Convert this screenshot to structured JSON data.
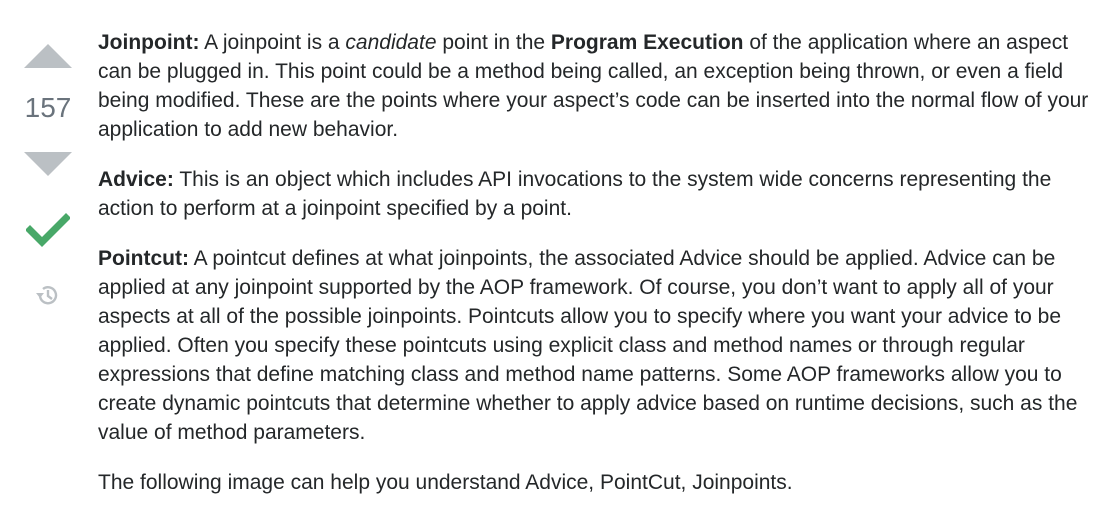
{
  "votes": {
    "count": "157",
    "accepted": true,
    "icons": {
      "up": "triangle-up-icon",
      "down": "triangle-down-icon",
      "accepted": "checkmark-icon",
      "history": "history-icon"
    },
    "colors": {
      "arrow": "#bbc0c4",
      "count": "#6a737c",
      "accepted": "#48a868",
      "history": "#bbc0c4"
    }
  },
  "answer": {
    "joinpoint": {
      "term": "Joinpoint:",
      "before": " A joinpoint is a ",
      "emphasis": "candidate",
      "middle": " point in the ",
      "strong": "Program Execution",
      "after": " of the application where an aspect can be plugged in. This point could be a method being called, an exception being thrown, or even a field being modified. These are the points where your aspect’s code can be inserted into the normal flow of your application to add new behavior."
    },
    "advice": {
      "term": "Advice:",
      "text": " This is an object which includes API invocations to the system wide concerns representing the action to perform at a joinpoint specified by a point."
    },
    "pointcut": {
      "term": "Pointcut:",
      "text": " A pointcut defines at what joinpoints, the associated Advice should be applied. Advice can be applied at any joinpoint supported by the AOP framework. Of course, you don’t want to apply all of your aspects at all of the possible joinpoints. Pointcuts allow you to specify where you want your advice to be applied. Often you specify these pointcuts using explicit class and method names or through regular expressions that define matching class and method name patterns. Some AOP frameworks allow you to create dynamic pointcuts that determine whether to apply advice based on runtime decisions, such as the value of method parameters."
    },
    "closing": "The following image can help you understand Advice, PointCut, Joinpoints."
  }
}
